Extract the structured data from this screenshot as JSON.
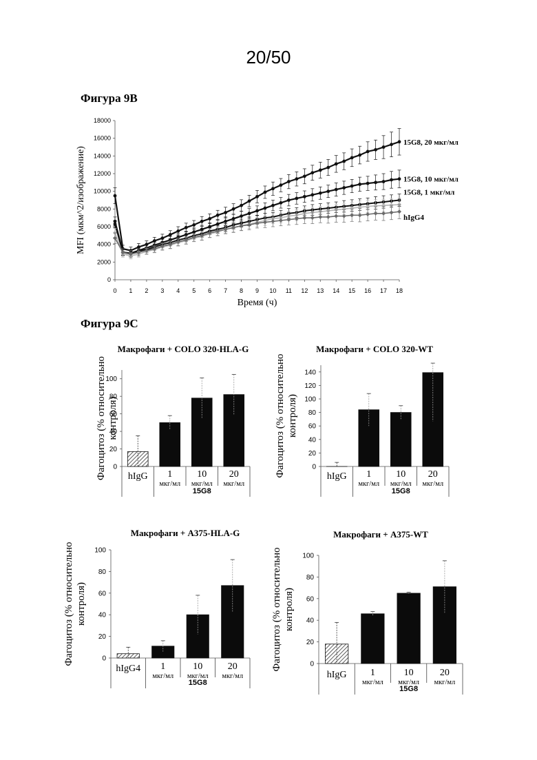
{
  "page_number": "20/50",
  "figure_9b_label": "Фигура 9В",
  "figure_9c_label": "Фигура 9С",
  "chart_data": [
    {
      "id": "fig9b",
      "type": "line",
      "xlabel": "Время (ч)",
      "ylabel": "MFI (мкм^2/изображение)",
      "xlim": [
        0,
        18
      ],
      "ylim": [
        0,
        18000
      ],
      "xticks": [
        0,
        1,
        2,
        3,
        4,
        5,
        6,
        7,
        8,
        9,
        10,
        11,
        12,
        13,
        14,
        15,
        16,
        17,
        18
      ],
      "yticks": [
        0,
        2000,
        4000,
        6000,
        8000,
        10000,
        12000,
        14000,
        16000,
        18000
      ],
      "x": [
        0,
        0.5,
        1,
        1.5,
        2,
        2.5,
        3,
        3.5,
        4,
        4.5,
        5,
        5.5,
        6,
        6.5,
        7,
        7.5,
        8,
        8.5,
        9,
        9.5,
        10,
        10.5,
        11,
        11.5,
        12,
        12.5,
        13,
        13.5,
        14,
        14.5,
        15,
        15.5,
        16,
        16.5,
        17,
        17.5,
        18
      ],
      "series": [
        {
          "name": "15G8, 20 мкг/мл",
          "color": "#111111",
          "marker": "circle",
          "values": [
            9500,
            3500,
            3300,
            3700,
            4000,
            4400,
            4700,
            5100,
            5500,
            5900,
            6200,
            6600,
            6900,
            7300,
            7600,
            8000,
            8400,
            8900,
            9400,
            9900,
            10300,
            10700,
            11100,
            11400,
            11700,
            12100,
            12400,
            12700,
            13100,
            13400,
            13800,
            14100,
            14500,
            14700,
            15000,
            15300,
            15600
          ],
          "error": [
            900,
            400,
            400,
            400,
            400,
            400,
            450,
            450,
            500,
            500,
            500,
            550,
            550,
            550,
            600,
            600,
            650,
            650,
            700,
            700,
            750,
            750,
            800,
            800,
            850,
            850,
            900,
            900,
            950,
            950,
            1000,
            1000,
            1100,
            1100,
            1300,
            1400,
            1500
          ]
        },
        {
          "name": "15G8, 10 мкг/мл",
          "color": "#111111",
          "marker": "circle",
          "values": [
            6600,
            3100,
            3000,
            3300,
            3600,
            3900,
            4200,
            4500,
            4800,
            5100,
            5400,
            5700,
            6000,
            6300,
            6600,
            6900,
            7200,
            7500,
            7800,
            8100,
            8400,
            8700,
            9000,
            9200,
            9400,
            9600,
            9800,
            10000,
            10200,
            10400,
            10600,
            10800,
            10900,
            11000,
            11100,
            11300,
            11400
          ],
          "error": [
            500,
            350,
            350,
            350,
            350,
            350,
            400,
            400,
            400,
            400,
            450,
            450,
            450,
            500,
            500,
            500,
            550,
            550,
            550,
            600,
            600,
            600,
            650,
            650,
            650,
            700,
            700,
            700,
            750,
            750,
            750,
            800,
            800,
            850,
            900,
            950,
            1000
          ]
        },
        {
          "name": "15G8, 1 мкг/мл",
          "color": "#111111",
          "marker": "circle",
          "values": [
            6300,
            3100,
            2900,
            3200,
            3400,
            3700,
            4000,
            4200,
            4500,
            4700,
            5000,
            5200,
            5500,
            5700,
            5900,
            6200,
            6400,
            6600,
            6800,
            7000,
            7100,
            7300,
            7500,
            7600,
            7800,
            7900,
            8000,
            8100,
            8200,
            8300,
            8400,
            8500,
            8600,
            8700,
            8800,
            8900,
            9000
          ],
          "error": [
            400,
            300,
            300,
            300,
            300,
            350,
            350,
            350,
            350,
            400,
            400,
            400,
            400,
            450,
            450,
            450,
            450,
            500,
            500,
            500,
            500,
            550,
            550,
            550,
            550,
            600,
            600,
            600,
            600,
            650,
            650,
            650,
            650,
            700,
            700,
            700,
            700
          ]
        },
        {
          "name": "",
          "color": "#b5b5b5",
          "marker": "circle",
          "values": [
            5300,
            2900,
            2700,
            2900,
            3200,
            3400,
            3700,
            3900,
            4200,
            4400,
            4700,
            4900,
            5200,
            5400,
            5700,
            5900,
            6100,
            6300,
            6500,
            6700,
            6900,
            7000,
            7200,
            7300,
            7500,
            7600,
            7700,
            7800,
            7900,
            8000,
            8100,
            8200,
            8300,
            8350,
            8400,
            8450,
            8500
          ],
          "error": [
            500,
            350,
            350,
            350,
            350,
            350,
            400,
            400,
            400,
            400,
            400,
            450,
            450,
            450,
            450,
            500,
            500,
            500,
            500,
            550,
            550,
            550,
            550,
            600,
            600,
            600,
            600,
            650,
            650,
            650,
            650,
            700,
            700,
            700,
            700,
            750,
            750
          ]
        },
        {
          "name": "hIgG4",
          "color": "#6a6a6a",
          "marker": "diamond",
          "values": [
            4700,
            3100,
            2900,
            3100,
            3300,
            3500,
            3800,
            4000,
            4300,
            4500,
            4800,
            5000,
            5300,
            5500,
            5700,
            5900,
            6100,
            6200,
            6400,
            6500,
            6600,
            6700,
            6800,
            6900,
            7000,
            7000,
            7100,
            7100,
            7200,
            7200,
            7300,
            7300,
            7400,
            7500,
            7500,
            7600,
            7700
          ],
          "error": [
            600,
            400,
            400,
            400,
            400,
            400,
            400,
            450,
            450,
            450,
            450,
            500,
            500,
            500,
            500,
            550,
            550,
            550,
            550,
            600,
            600,
            600,
            600,
            650,
            650,
            650,
            650,
            700,
            700,
            700,
            700,
            750,
            750,
            750,
            800,
            800,
            800
          ]
        }
      ]
    },
    {
      "id": "fig9c-1",
      "type": "bar",
      "title": "Макрофаги + COLO 320-HLA-G",
      "ylabel_line1": "Фагоцитоз (% относительно",
      "ylabel_line2": "контроля)",
      "ylim": [
        0,
        110
      ],
      "yticks": [
        0,
        20,
        40,
        60,
        80,
        100
      ],
      "categories": [
        {
          "main": "hIgG",
          "sub": ""
        },
        {
          "main": "1",
          "sub": "мкг/мл"
        },
        {
          "main": "10",
          "sub": "мкг/мл"
        },
        {
          "main": "20",
          "sub": "мкг/мл"
        }
      ],
      "values": [
        17,
        50,
        78,
        82
      ],
      "errors": [
        18,
        8,
        23,
        23
      ],
      "hatched": [
        true,
        false,
        false,
        false
      ],
      "group_label": "15G8"
    },
    {
      "id": "fig9c-2",
      "type": "bar",
      "title": "Макрофаги + COLO 320-WT",
      "ylabel_line1": "Фагоцитоз (% относительно",
      "ylabel_line2": "контроля)",
      "ylim": [
        0,
        150
      ],
      "yticks": [
        0,
        20,
        40,
        60,
        80,
        100,
        120,
        140
      ],
      "categories": [
        {
          "main": "hIgG",
          "sub": ""
        },
        {
          "main": "1",
          "sub": "мкг/мл"
        },
        {
          "main": "10",
          "sub": "мкг/мл"
        },
        {
          "main": "20",
          "sub": "мкг/мл"
        }
      ],
      "values": [
        0,
        84,
        80,
        139
      ],
      "errors": [
        6,
        24,
        10,
        72
      ],
      "hatched": [
        true,
        false,
        false,
        false
      ],
      "group_label": "15G8"
    },
    {
      "id": "fig9c-3",
      "type": "bar",
      "title": "Макрофаги + A375-HLA-G",
      "ylabel_line1": "Фагоцитоз (% относительно",
      "ylabel_line2": "контроля)",
      "ylim": [
        0,
        100
      ],
      "yticks": [
        0,
        20,
        40,
        60,
        80,
        100
      ],
      "categories": [
        {
          "main": "hIgG4",
          "sub": ""
        },
        {
          "main": "1",
          "sub": "мкг/мл"
        },
        {
          "main": "10",
          "sub": "мкг/мл"
        },
        {
          "main": "20",
          "sub": "мкг/мл"
        }
      ],
      "values": [
        4,
        11,
        40,
        67
      ],
      "errors": [
        6,
        5,
        18,
        24
      ],
      "hatched": [
        true,
        false,
        false,
        false
      ],
      "group_label": "15G8"
    },
    {
      "id": "fig9c-4",
      "type": "bar",
      "title": "Макрофаги + A375-WT",
      "ylabel_line1": "Фагоцитоз (% относительно",
      "ylabel_line2": "контроля)",
      "ylim": [
        0,
        100
      ],
      "yticks": [
        0,
        20,
        40,
        60,
        80,
        100
      ],
      "categories": [
        {
          "main": "hIgG",
          "sub": ""
        },
        {
          "main": "1",
          "sub": "мкг/мл"
        },
        {
          "main": "10",
          "sub": "мкг/мл"
        },
        {
          "main": "20",
          "sub": "мкг/мл"
        }
      ],
      "values": [
        18,
        46,
        65,
        71
      ],
      "errors": [
        20,
        2,
        1,
        24
      ],
      "hatched": [
        true,
        false,
        false,
        false
      ],
      "group_label": "15G8"
    }
  ]
}
